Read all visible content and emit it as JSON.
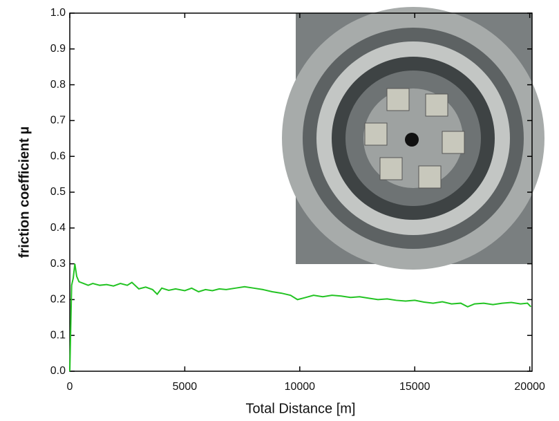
{
  "chart_data": {
    "type": "line",
    "xlabel": "Total Distance [m]",
    "ylabel": "friction coefficient µ",
    "x": [
      0,
      40,
      80,
      150,
      220,
      300,
      400,
      600,
      800,
      1000,
      1300,
      1600,
      1900,
      2200,
      2500,
      2700,
      3000,
      3300,
      3600,
      3800,
      4000,
      4300,
      4600,
      5000,
      5300,
      5600,
      5900,
      6200,
      6500,
      6800,
      7200,
      7600,
      8000,
      8400,
      8800,
      9200,
      9600,
      9900,
      10200,
      10600,
      11000,
      11400,
      11800,
      12200,
      12600,
      13000,
      13400,
      13800,
      14200,
      14600,
      15000,
      15400,
      15800,
      16200,
      16600,
      17000,
      17300,
      17600,
      18000,
      18400,
      18800,
      19200,
      19600,
      19900,
      20050
    ],
    "series": [
      {
        "color": "#22c322",
        "values": [
          0.0,
          0.12,
          0.24,
          0.26,
          0.3,
          0.265,
          0.25,
          0.245,
          0.24,
          0.245,
          0.24,
          0.242,
          0.238,
          0.245,
          0.24,
          0.248,
          0.23,
          0.235,
          0.228,
          0.215,
          0.232,
          0.226,
          0.23,
          0.225,
          0.232,
          0.222,
          0.228,
          0.225,
          0.23,
          0.228,
          0.232,
          0.236,
          0.232,
          0.228,
          0.222,
          0.218,
          0.212,
          0.2,
          0.205,
          0.212,
          0.208,
          0.212,
          0.21,
          0.206,
          0.208,
          0.204,
          0.2,
          0.202,
          0.198,
          0.196,
          0.198,
          0.193,
          0.19,
          0.194,
          0.188,
          0.19,
          0.18,
          0.188,
          0.19,
          0.186,
          0.19,
          0.192,
          0.188,
          0.19,
          0.18
        ]
      }
    ],
    "xlim": [
      0,
      20100
    ],
    "ylim": [
      0,
      1
    ],
    "xticks": [
      0,
      5000,
      10000,
      15000,
      20000
    ],
    "yticks": [
      {
        "value": 0,
        "label": "0.0"
      },
      0.1,
      0.2,
      0.3,
      0.4,
      0.5,
      0.6,
      0.7,
      0.8,
      0.9,
      {
        "value": 1,
        "label": "1.0"
      }
    ]
  }
}
